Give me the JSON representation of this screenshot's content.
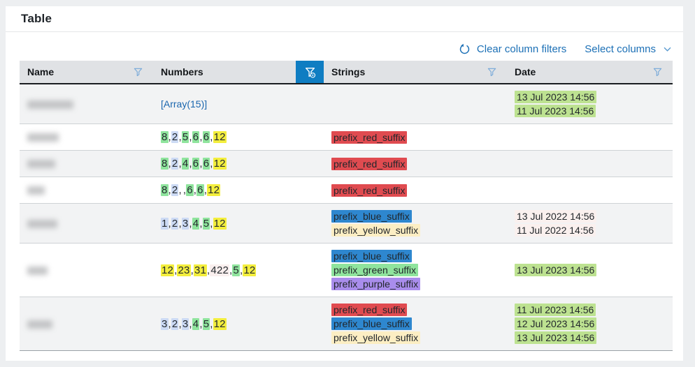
{
  "title": "Table",
  "controls": {
    "clear_filters_label": "Clear column filters",
    "select_columns_label": "Select columns"
  },
  "columns": [
    {
      "label": "Name",
      "filter_active": false
    },
    {
      "label": "Numbers",
      "filter_active": true
    },
    {
      "label": "Strings",
      "filter_active": false
    },
    {
      "label": "Date",
      "filter_active": false
    }
  ],
  "colors": {
    "accent_blue": "#1c70b6",
    "active_filter_bg": "#0f7dc2",
    "highlights": {
      "green": "#8fe49d",
      "blue": "#ccdaf4",
      "yellow": "#f3ee3d",
      "pink": "#f9efee",
      "red": "#e04b50",
      "string_blue": "#2e87cf",
      "pale_yellow": "#fceec3",
      "purple": "#a98dec",
      "date_green": "#bde291",
      "date_pink": "#faf0ee",
      "none": "transparent"
    }
  },
  "rows": [
    {
      "name_blur_width": 66,
      "numbers_link": "[Array(15)]",
      "numbers": [],
      "strings": [],
      "dates": [
        {
          "text": "13 Jul 2023 14:56",
          "highlight": "date_green"
        },
        {
          "text": "11 Jul 2023 14:56",
          "highlight": "date_green"
        }
      ]
    },
    {
      "name_blur_width": 45,
      "numbers": [
        {
          "t": "8",
          "h": "green"
        },
        {
          "t": "2",
          "h": "blue"
        },
        {
          "t": "5",
          "h": "green"
        },
        {
          "t": "6",
          "h": "green"
        },
        {
          "t": "6",
          "h": "green"
        },
        {
          "t": "12",
          "h": "yellow"
        }
      ],
      "strings": [
        {
          "text": "prefix_red_suffix",
          "highlight": "red"
        }
      ],
      "dates": []
    },
    {
      "name_blur_width": 40,
      "numbers": [
        {
          "t": "8",
          "h": "green"
        },
        {
          "t": "2",
          "h": "blue"
        },
        {
          "t": "4",
          "h": "green"
        },
        {
          "t": "6",
          "h": "green"
        },
        {
          "t": "6",
          "h": "green"
        },
        {
          "t": "12",
          "h": "yellow"
        }
      ],
      "strings": [
        {
          "text": "prefix_red_suffix",
          "highlight": "red"
        }
      ],
      "dates": []
    },
    {
      "name_blur_width": 25,
      "numbers": [
        {
          "t": "8",
          "h": "green"
        },
        {
          "t": "2",
          "h": "blue"
        },
        {
          "t": "",
          "h": "none"
        },
        {
          "t": "6",
          "h": "green"
        },
        {
          "t": "6",
          "h": "green"
        },
        {
          "t": "12",
          "h": "yellow"
        }
      ],
      "strings": [
        {
          "text": "prefix_red_suffix",
          "highlight": "red"
        }
      ],
      "dates": []
    },
    {
      "name_blur_width": 43,
      "numbers": [
        {
          "t": "1",
          "h": "blue"
        },
        {
          "t": "2",
          "h": "blue"
        },
        {
          "t": "3",
          "h": "blue"
        },
        {
          "t": "4",
          "h": "green"
        },
        {
          "t": "5",
          "h": "green"
        },
        {
          "t": "12",
          "h": "yellow"
        }
      ],
      "strings": [
        {
          "text": "prefix_blue_suffix",
          "highlight": "string_blue"
        },
        {
          "text": "prefix_yellow_suffix",
          "highlight": "pale_yellow"
        }
      ],
      "dates": [
        {
          "text": "13 Jul 2022 14:56",
          "highlight": "date_pink"
        },
        {
          "text": "11 Jul 2022 14:56",
          "highlight": "date_pink"
        }
      ]
    },
    {
      "name_blur_width": 29,
      "numbers": [
        {
          "t": "12",
          "h": "yellow"
        },
        {
          "t": "23",
          "h": "yellow"
        },
        {
          "t": "31",
          "h": "yellow"
        },
        {
          "t": "422",
          "h": "pink"
        },
        {
          "t": "5",
          "h": "green"
        },
        {
          "t": "12",
          "h": "yellow"
        }
      ],
      "strings": [
        {
          "text": "prefix_blue_suffix",
          "highlight": "string_blue"
        },
        {
          "text": "prefix_green_suffix",
          "highlight": "green"
        },
        {
          "text": "prefix_purple_suffix",
          "highlight": "purple"
        }
      ],
      "dates": [
        {
          "text": "13 Jul 2023 14:56",
          "highlight": "date_green"
        }
      ]
    },
    {
      "name_blur_width": 36,
      "numbers": [
        {
          "t": "3",
          "h": "blue"
        },
        {
          "t": "2",
          "h": "blue"
        },
        {
          "t": "3",
          "h": "blue"
        },
        {
          "t": "4",
          "h": "green"
        },
        {
          "t": "5",
          "h": "green"
        },
        {
          "t": "12",
          "h": "yellow"
        }
      ],
      "strings": [
        {
          "text": "prefix_red_suffix",
          "highlight": "red"
        },
        {
          "text": "prefix_blue_suffix",
          "highlight": "string_blue"
        },
        {
          "text": "prefix_yellow_suffix",
          "highlight": "pale_yellow"
        }
      ],
      "dates": [
        {
          "text": "11 Jul 2023 14:56",
          "highlight": "date_green"
        },
        {
          "text": "12 Jul 2023 14:56",
          "highlight": "date_green"
        },
        {
          "text": "13 Jul 2023 14:56",
          "highlight": "date_green"
        }
      ]
    }
  ]
}
